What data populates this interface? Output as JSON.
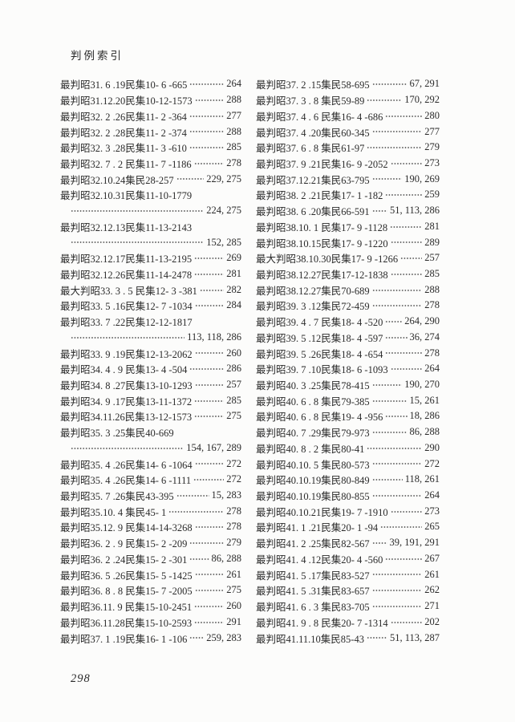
{
  "page": {
    "header": "判例索引",
    "page_number": "298"
  },
  "colors": {
    "ink": "#2b2b2b",
    "paper": "#fcfcfb"
  },
  "columns": [
    {
      "side": "left",
      "entries": [
        {
          "cite": "最判昭31. 6 .19民集10- 6 -665",
          "pages": "264"
        },
        {
          "cite": "最判昭31.12.20民集10-12-1573",
          "pages": "288"
        },
        {
          "cite": "最判昭32. 2 .26民集11- 2 -364",
          "pages": "277"
        },
        {
          "cite": "最判昭32. 2 .28民集11- 2 -374",
          "pages": "288"
        },
        {
          "cite": "最判昭32. 3 .28民集11- 3 -610",
          "pages": "285"
        },
        {
          "cite": "最判昭32. 7 . 2 民集11- 7 -1186",
          "pages": "278"
        },
        {
          "cite": "最判昭32.10.24集民28-257",
          "pages": "229, 275"
        },
        {
          "cite": "最判昭32.10.31民集11-10-1779",
          "pages": ""
        },
        {
          "cite": "",
          "pages": "224, 275",
          "continuation": true
        },
        {
          "cite": "最判昭32.12.13民集11-13-2143",
          "pages": ""
        },
        {
          "cite": "",
          "pages": "152, 285",
          "continuation": true
        },
        {
          "cite": "最判昭32.12.17民集11-13-2195",
          "pages": "269"
        },
        {
          "cite": "最判昭32.12.26民集11-14-2478",
          "pages": "281"
        },
        {
          "cite": "最大判昭33. 3 . 5 民集12- 3 -381",
          "pages": "282"
        },
        {
          "cite": "最判昭33. 5 .16民集12- 7 -1034",
          "pages": "284"
        },
        {
          "cite": "最判昭33. 7 .22民集12-12-1817",
          "pages": ""
        },
        {
          "cite": "",
          "pages": "113, 118, 286",
          "continuation": true
        },
        {
          "cite": "最判昭33. 9 .19民集12-13-2062",
          "pages": "260"
        },
        {
          "cite": "最判昭34. 4 . 9 民集13- 4 -504",
          "pages": "286"
        },
        {
          "cite": "最判昭34. 8 .27民集13-10-1293",
          "pages": "257"
        },
        {
          "cite": "最判昭34. 9 .17民集13-11-1372",
          "pages": "285"
        },
        {
          "cite": "最判昭34.11.26民集13-12-1573",
          "pages": "275"
        },
        {
          "cite": "最判昭35. 3 .25集民40-669",
          "pages": ""
        },
        {
          "cite": "",
          "pages": "154, 167, 289",
          "continuation": true
        },
        {
          "cite": "最判昭35. 4 .26民集14- 6 -1064",
          "pages": "272"
        },
        {
          "cite": "最判昭35. 4 .26民集14- 6 -1111",
          "pages": "272"
        },
        {
          "cite": "最判昭35. 7 .26集民43-395",
          "pages": "15, 283"
        },
        {
          "cite": "最判昭35.10. 4 集民45- 1",
          "pages": "278"
        },
        {
          "cite": "最判昭35.12. 9 民集14-14-3268",
          "pages": "278"
        },
        {
          "cite": "最判昭36. 2 . 9 民集15- 2 -209",
          "pages": "279"
        },
        {
          "cite": "最判昭36. 2 .24民集15- 2 -301",
          "pages": "86, 288"
        },
        {
          "cite": "最判昭36. 5 .26民集15- 5 -1425",
          "pages": "261"
        },
        {
          "cite": "最判昭36. 8 . 8 民集15- 7 -2005",
          "pages": "275"
        },
        {
          "cite": "最判昭36.11. 9 民集15-10-2451",
          "pages": "260"
        },
        {
          "cite": "最判昭36.11.28民集15-10-2593",
          "pages": "291"
        },
        {
          "cite": "最判昭37. 1 .19民集16- 1 -106",
          "pages": "259, 283"
        }
      ]
    },
    {
      "side": "right",
      "entries": [
        {
          "cite": "最判昭37. 2 .15集民58-695",
          "pages": "67, 291"
        },
        {
          "cite": "最判昭37. 3 . 8 集民59-89",
          "pages": "170, 292"
        },
        {
          "cite": "最判昭37. 4 . 6 民集16- 4 -686",
          "pages": "280"
        },
        {
          "cite": "最判昭37. 4 .20集民60-345",
          "pages": "277"
        },
        {
          "cite": "最判昭37. 6 . 8 集民61-97",
          "pages": "279"
        },
        {
          "cite": "最判昭37. 9 .21民集16- 9 -2052",
          "pages": "273"
        },
        {
          "cite": "最判昭37.12.21集民63-795",
          "pages": "190, 269"
        },
        {
          "cite": "最判昭38. 2 .21民集17- 1 -182",
          "pages": "259"
        },
        {
          "cite": "最判昭38. 6 .20集民66-591",
          "pages": "51, 113, 286"
        },
        {
          "cite": "最判昭38.10. 1 民集17- 9 -1128",
          "pages": "281"
        },
        {
          "cite": "最判昭38.10.15民集17- 9 -1220",
          "pages": "289"
        },
        {
          "cite": "最大判昭38.10.30民集17- 9 -1266",
          "pages": "257"
        },
        {
          "cite": "最判昭38.12.27民集17-12-1838",
          "pages": "285"
        },
        {
          "cite": "最判昭38.12.27集民70-689",
          "pages": "288"
        },
        {
          "cite": "最判昭39. 3 .12集民72-459",
          "pages": "278"
        },
        {
          "cite": "最判昭39. 4 . 7 民集18- 4 -520",
          "pages": "264, 290"
        },
        {
          "cite": "最判昭39. 5 .12民集18- 4 -597",
          "pages": "36, 274"
        },
        {
          "cite": "最判昭39. 5 .26民集18- 4 -654",
          "pages": "278"
        },
        {
          "cite": "最判昭39. 7 .10民集18- 6 -1093",
          "pages": "264"
        },
        {
          "cite": "最判昭40. 3 .25集民78-415",
          "pages": "190, 270"
        },
        {
          "cite": "最判昭40. 6 . 8 集民79-385",
          "pages": "15, 261"
        },
        {
          "cite": "最判昭40. 6 . 8 民集19- 4 -956",
          "pages": "18, 286"
        },
        {
          "cite": "最判昭40. 7 .29集民79-973",
          "pages": "86, 288"
        },
        {
          "cite": "最判昭40. 8 . 2 集民80-41",
          "pages": "290"
        },
        {
          "cite": "最判昭40.10. 5 集民80-573",
          "pages": "272"
        },
        {
          "cite": "最判昭40.10.19集民80-849",
          "pages": "118, 261"
        },
        {
          "cite": "最判昭40.10.19集民80-855",
          "pages": "264"
        },
        {
          "cite": "最判昭40.10.21民集19- 7 -1910",
          "pages": "273"
        },
        {
          "cite": "最判昭41. 1 .21民集20- 1 -94",
          "pages": "265"
        },
        {
          "cite": "最判昭41. 2 .25集民82-567",
          "pages": "39, 191, 291"
        },
        {
          "cite": "最判昭41. 4 .12民集20- 4 -560",
          "pages": "267"
        },
        {
          "cite": "最判昭41. 5 .17集民83-527",
          "pages": "261"
        },
        {
          "cite": "最判昭41. 5 .31集民83-657",
          "pages": "262"
        },
        {
          "cite": "最判昭41. 6 . 3 集民83-705",
          "pages": "271"
        },
        {
          "cite": "最判昭41. 9 . 8 民集20- 7 -1314",
          "pages": "202"
        },
        {
          "cite": "最判昭41.11.10集民85-43",
          "pages": "51, 113, 287"
        }
      ]
    }
  ]
}
